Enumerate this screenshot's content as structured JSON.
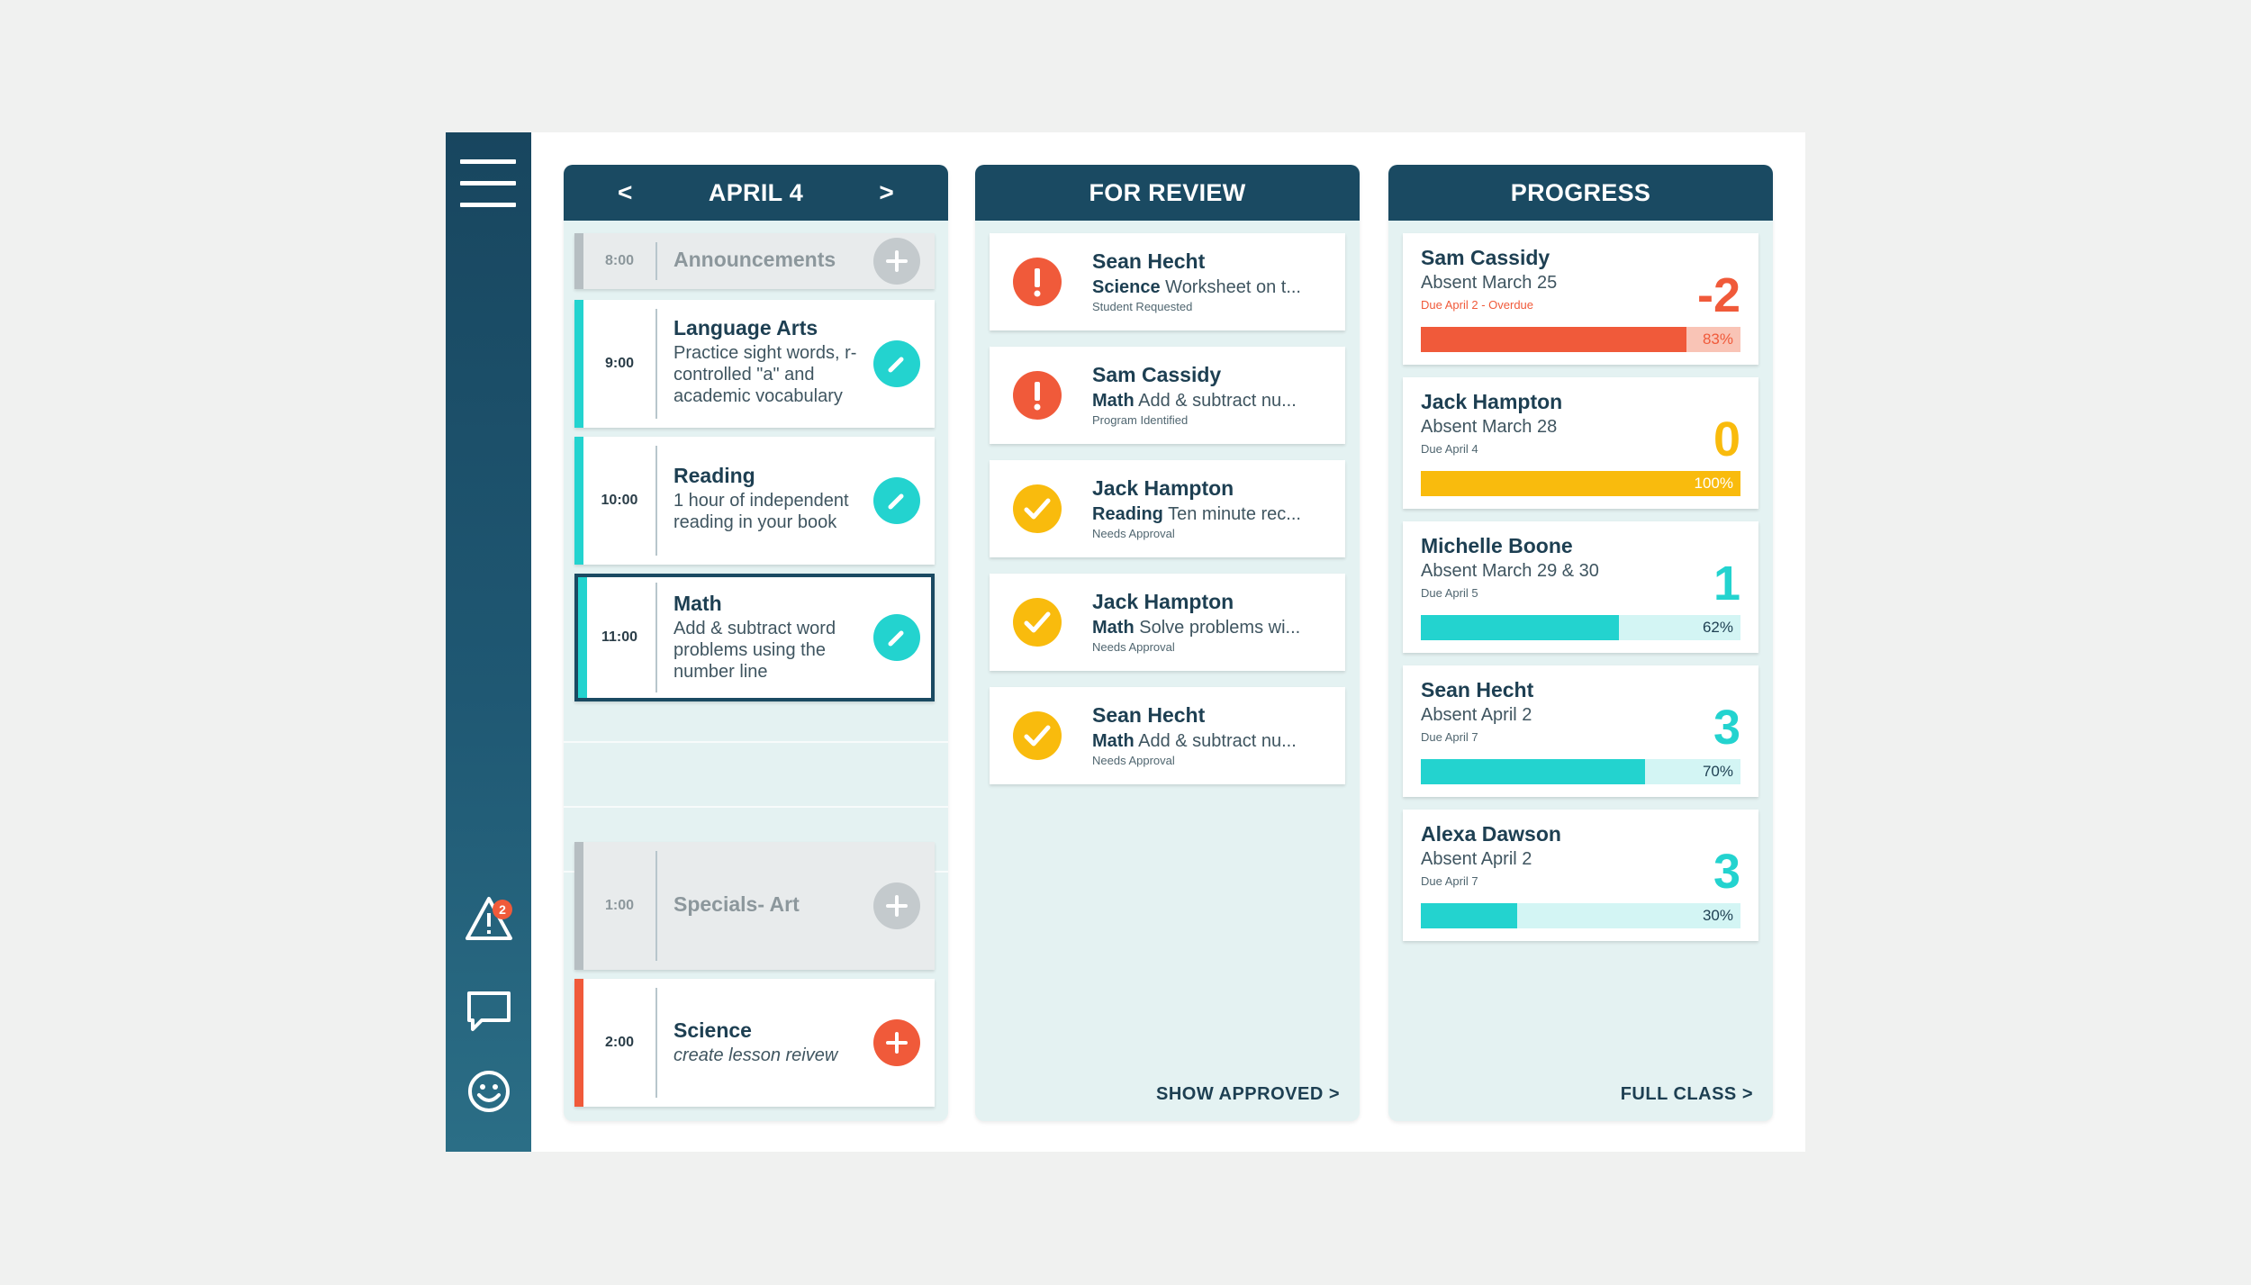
{
  "colors": {
    "navy": "#1a4a62",
    "teal": "#23d3cf",
    "orange": "#f05a3a",
    "yellow": "#f9bb0d",
    "gray": "#b6bec2"
  },
  "sidebar": {
    "menu_icon": "hamburger-icon",
    "alerts_icon": "warning-icon",
    "alerts_count": "2",
    "messages_icon": "chat-icon",
    "profile_icon": "smiley-icon"
  },
  "schedule": {
    "prev_label": "<",
    "next_label": ">",
    "date": "APRIL 4",
    "slots": [
      {
        "time": "8:00",
        "title": "Announcements",
        "desc": "",
        "status": "inactive",
        "action": "add"
      },
      {
        "time": "9:00",
        "title": "Language Arts",
        "desc": "Practice sight words, r-controlled \"a\" and academic vocabulary",
        "status": "teal",
        "action": "edit"
      },
      {
        "time": "10:00",
        "title": "Reading",
        "desc": "1 hour of independent reading in your book",
        "status": "teal",
        "action": "edit"
      },
      {
        "time": "11:00",
        "title": "Math",
        "desc": "Add & subtract word problems using the number line",
        "status": "teal",
        "action": "edit",
        "selected": true
      },
      {
        "time": "1:00",
        "title": "Specials- Art",
        "desc": "",
        "status": "inactive",
        "action": "add"
      },
      {
        "time": "2:00",
        "title": "Science",
        "desc": "create lesson reivew",
        "status": "orange",
        "action": "add"
      }
    ]
  },
  "review": {
    "title": "FOR REVIEW",
    "footer": "SHOW APPROVED >",
    "items": [
      {
        "name": "Sean Hecht",
        "subject": "Science",
        "task": "Worksheet on t...",
        "note": "Student Requested",
        "status": "alert"
      },
      {
        "name": "Sam Cassidy",
        "subject": "Math",
        "task": "Add & subtract nu...",
        "note": "Program Identified",
        "status": "alert"
      },
      {
        "name": "Jack Hampton",
        "subject": "Reading",
        "task": "Ten minute rec...",
        "note": "Needs Approval",
        "status": "check"
      },
      {
        "name": "Jack Hampton",
        "subject": "Math",
        "task": "Solve problems wi...",
        "note": "Needs Approval",
        "status": "check"
      },
      {
        "name": "Sean Hecht",
        "subject": "Math",
        "task": "Add & subtract nu...",
        "note": "Needs Approval",
        "status": "check"
      }
    ]
  },
  "progress": {
    "title": "PROGRESS",
    "footer": "FULL CLASS >",
    "items": [
      {
        "name": "Sam Cassidy",
        "absent": "Absent March 25",
        "due": "Due April 2 - Overdue",
        "score": "-2",
        "percent": 83,
        "percent_label": "83%",
        "color": "#f05a3a",
        "track": "#f9c4b6",
        "pct_color": "#f05a3a",
        "due_color": "#f05a3a"
      },
      {
        "name": "Jack Hampton",
        "absent": "Absent March 28",
        "due": "Due April 4",
        "score": "0",
        "percent": 100,
        "percent_label": "100%",
        "color": "#f9bb0d",
        "track": "#fdeab2",
        "pct_color": "#ffffff",
        "due_color": "#506670"
      },
      {
        "name": "Michelle Boone",
        "absent": "Absent March 29 & 30",
        "due": "Due April 5",
        "score": "1",
        "percent": 62,
        "percent_label": "62%",
        "color": "#23d3cf",
        "track": "#d3f5f4",
        "pct_color": "#1d3f52",
        "due_color": "#506670"
      },
      {
        "name": "Sean Hecht",
        "absent": "Absent April 2",
        "due": "Due April 7",
        "score": "3",
        "percent": 70,
        "percent_label": "70%",
        "color": "#23d3cf",
        "track": "#d3f5f4",
        "pct_color": "#1d3f52",
        "due_color": "#506670"
      },
      {
        "name": "Alexa Dawson",
        "absent": "Absent April 2",
        "due": "Due April 7",
        "score": "3",
        "percent": 30,
        "percent_label": "30%",
        "color": "#23d3cf",
        "track": "#d3f5f4",
        "pct_color": "#1d3f52",
        "due_color": "#506670"
      }
    ]
  }
}
